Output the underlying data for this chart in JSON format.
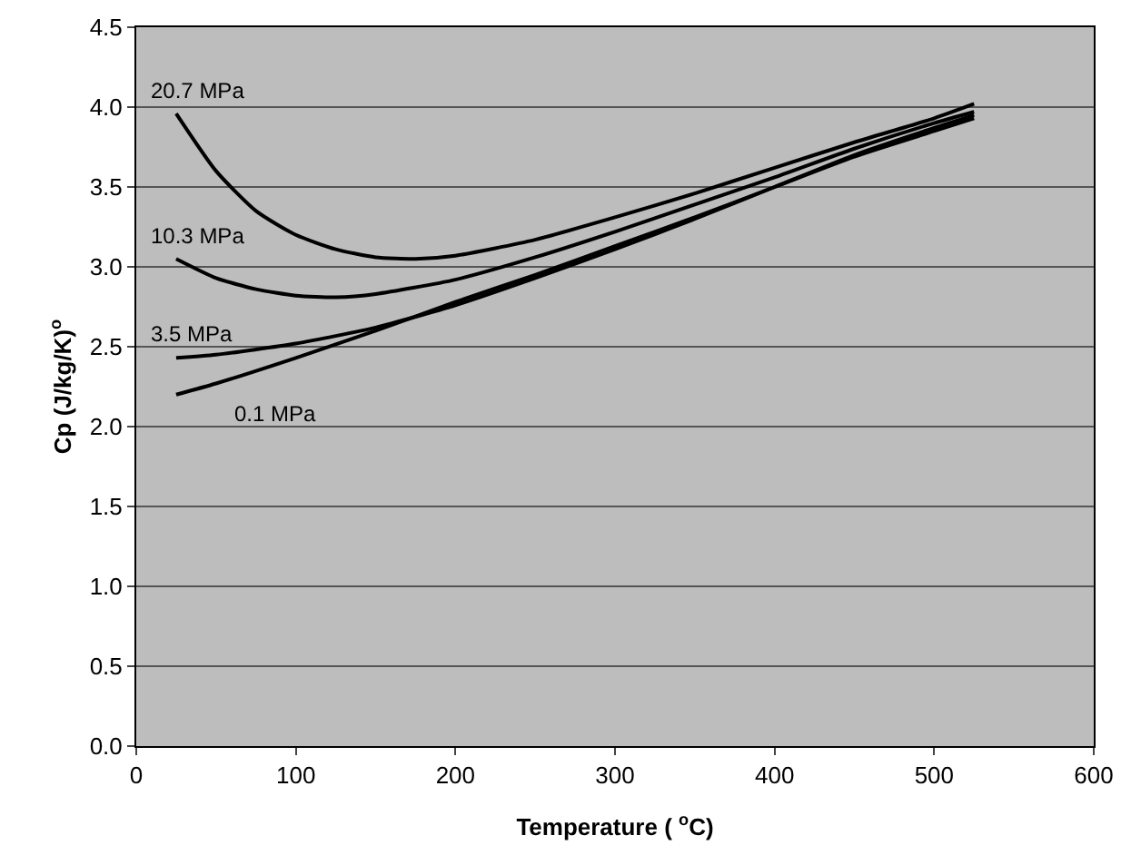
{
  "chart_data": {
    "type": "line",
    "xlabel": "Temperature ( $^{o}$C)",
    "ylabel": "Cp (J/kg/K)$^{o}$",
    "xlim": [
      0,
      600
    ],
    "xticks": [
      0,
      100,
      200,
      300,
      400,
      500,
      600
    ],
    "ylim": [
      0,
      4.5
    ],
    "yticks": [
      {
        "value": 0,
        "label": "0.0"
      },
      0.5,
      {
        "value": 1,
        "label": "1.0"
      },
      1.5,
      {
        "value": 2,
        "label": "2.0"
      },
      2.5,
      {
        "value": 3,
        "label": "3.0"
      },
      3.5,
      {
        "value": 4,
        "label": "4.0"
      },
      4.5
    ],
    "grid": "y",
    "legend": false,
    "marker": "none",
    "line_style": "solid",
    "series": [
      {
        "name": "20.7 MPa",
        "color": "#000000",
        "x": [
          25,
          50,
          75,
          100,
          125,
          150,
          175,
          200,
          250,
          300,
          350,
          400,
          450,
          500,
          525
        ],
        "values": [
          3.96,
          3.6,
          3.35,
          3.2,
          3.11,
          3.06,
          3.05,
          3.07,
          3.17,
          3.31,
          3.46,
          3.62,
          3.78,
          3.93,
          4.02
        ]
      },
      {
        "name": "10.3 MPa",
        "color": "#000000",
        "x": [
          25,
          50,
          75,
          100,
          125,
          150,
          200,
          250,
          300,
          350,
          400,
          450,
          500,
          525
        ],
        "values": [
          3.05,
          2.93,
          2.86,
          2.82,
          2.81,
          2.83,
          2.92,
          3.06,
          3.22,
          3.39,
          3.56,
          3.74,
          3.9,
          3.97
        ]
      },
      {
        "name": "3.5 MPa",
        "color": "#000000",
        "x": [
          25,
          50,
          100,
          150,
          200,
          250,
          300,
          350,
          400,
          450,
          500,
          525
        ],
        "values": [
          2.43,
          2.45,
          2.52,
          2.62,
          2.76,
          2.93,
          3.11,
          3.3,
          3.5,
          3.7,
          3.87,
          3.95
        ]
      },
      {
        "name": "0.1 MPa",
        "color": "#000000",
        "x": [
          25,
          50,
          100,
          150,
          200,
          250,
          300,
          350,
          400,
          450,
          500,
          525
        ],
        "values": [
          2.2,
          2.27,
          2.43,
          2.6,
          2.78,
          2.95,
          3.13,
          3.31,
          3.5,
          3.69,
          3.85,
          3.93
        ]
      }
    ]
  }
}
